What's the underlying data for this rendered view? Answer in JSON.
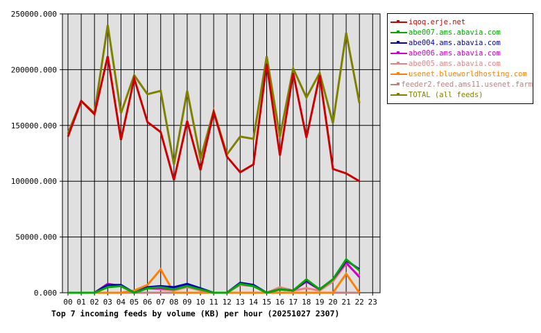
{
  "chart_data": {
    "type": "line",
    "title": "Top 7 incoming feeds by volume (KB) per hour (20251027 2307)",
    "xlabel": "",
    "ylabel": "",
    "ylim": [
      0,
      250000
    ],
    "grid": true,
    "legend_position": "right",
    "y_ticks": [
      "0.000",
      "50000.000",
      "100000.000",
      "150000.000",
      "200000.000",
      "250000.000"
    ],
    "x": [
      "00",
      "01",
      "02",
      "03",
      "04",
      "05",
      "06",
      "07",
      "08",
      "09",
      "10",
      "11",
      "12",
      "13",
      "14",
      "15",
      "16",
      "17",
      "18",
      "19",
      "20",
      "21",
      "22",
      "23"
    ],
    "series": [
      {
        "name": "iqoq.erje.net",
        "color": "#cc0000",
        "values": [
          140000,
          172000,
          160000,
          212000,
          137000,
          192000,
          153000,
          144000,
          101000,
          154000,
          110000,
          162000,
          122000,
          108000,
          115000,
          205000,
          123000,
          197000,
          139000,
          195000,
          111000,
          107000,
          100000
        ]
      },
      {
        "name": "abe007.ams.abavia.com",
        "color": "#00aa00",
        "values": [
          0,
          0,
          0,
          5000,
          6000,
          0,
          4000,
          5000,
          3000,
          6000,
          3000,
          0,
          0,
          8000,
          6000,
          0,
          3000,
          2000,
          12000,
          3000,
          12000,
          30000,
          20000
        ]
      },
      {
        "name": "abe004.ams.abavia.com",
        "color": "#0000bb",
        "values": [
          0,
          0,
          0,
          7000,
          7000,
          0,
          5000,
          6000,
          5000,
          8000,
          4000,
          0,
          0,
          9000,
          7000,
          0,
          3000,
          2000,
          11000,
          3000,
          12000,
          29000,
          21000
        ]
      },
      {
        "name": "abe006.ams.abavia.com",
        "color": "#cc00cc",
        "values": [
          0,
          0,
          0,
          8000,
          6000,
          0,
          4000,
          4000,
          3000,
          6000,
          3000,
          0,
          0,
          8000,
          6000,
          0,
          3000,
          2000,
          10000,
          3000,
          12000,
          27000,
          14000
        ]
      },
      {
        "name": "abe005.ams.abavia.com",
        "color": "#f08080",
        "values": [
          0,
          0,
          0,
          6000,
          6000,
          0,
          4000,
          3000,
          2000,
          5000,
          2000,
          0,
          0,
          7000,
          6000,
          0,
          5000,
          2000,
          4000,
          2000,
          10000,
          26000,
          15000
        ]
      },
      {
        "name": "usenet.blueworldhosting.com",
        "color": "#ff8000",
        "values": [
          0,
          0,
          0,
          0,
          0,
          2000,
          7000,
          21000,
          0,
          0,
          0,
          0,
          0,
          0,
          0,
          0,
          0,
          0,
          0,
          0,
          0,
          17000,
          0
        ]
      },
      {
        "name": "feeder2.feed.ams11.usenet.farm",
        "color": "#c08080",
        "values": [
          0,
          0,
          0,
          0,
          0,
          0,
          0,
          0,
          0,
          0,
          0,
          0,
          0,
          0,
          0,
          0,
          0,
          0,
          0,
          0,
          0,
          0,
          0
        ]
      },
      {
        "name": "TOTAL (all feeds)",
        "color": "#808000",
        "values": [
          143000,
          172000,
          161000,
          240000,
          161000,
          195000,
          178000,
          181000,
          115000,
          181000,
          120000,
          163000,
          124000,
          140000,
          138000,
          212000,
          140000,
          201000,
          175000,
          197000,
          152000,
          233000,
          170000
        ]
      }
    ]
  },
  "legend": {
    "items": [
      {
        "label": "iqoq.erje.net",
        "color": "#cc0000"
      },
      {
        "label": "abe007.ams.abavia.com",
        "color": "#00aa00"
      },
      {
        "label": "abe004.ams.abavia.com",
        "color": "#0000bb"
      },
      {
        "label": "abe006.ams.abavia.com",
        "color": "#cc00cc"
      },
      {
        "label": "abe005.ams.abavia.com",
        "color": "#f08080"
      },
      {
        "label": "usenet.blueworldhosting.com",
        "color": "#ff8000"
      },
      {
        "label": "feeder2.feed.ams11.usenet.farm",
        "color": "#c08080"
      },
      {
        "label": "TOTAL (all feeds)",
        "color": "#808000"
      }
    ]
  },
  "colors": {
    "plot_bg": "#e0e0e0",
    "grid": "#000000"
  }
}
